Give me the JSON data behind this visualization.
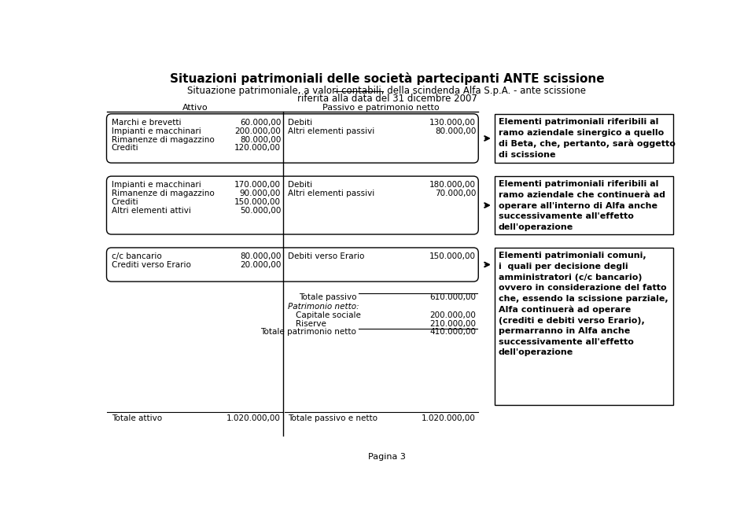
{
  "title": "Situazioni patrimoniali delle società partecipanti ANTE scissione",
  "subtitle_pre": "Situazione patrimoniale, ",
  "subtitle_underlined": "a valori contabili",
  "subtitle_post": ", della scindenda Alfa S.p.A. - ante scissione",
  "subtitle2": "riferita alla data del 31 dicembre 2007",
  "col_attivo": "Attivo",
  "col_passivo": "Passivo e patrimonio netto",
  "block1_left": [
    [
      "Marchi e brevetti",
      "60.000,00"
    ],
    [
      "Impianti e macchinari",
      "200.000,00"
    ],
    [
      "Rimanenze di magazzino",
      "80.000,00"
    ],
    [
      "Crediti",
      "120.000,00"
    ]
  ],
  "block1_right": [
    [
      "Debiti",
      "130.000,00"
    ],
    [
      "Altri elementi passivi",
      "80.000,00"
    ]
  ],
  "note1": "Elementi patrimoniali riferibili al\nramo aziendale sinergico a quello\ndi Beta, che, pertanto, sarà oggetto\ndi scissione",
  "block2_left": [
    [
      "Impianti e macchinari",
      "170.000,00"
    ],
    [
      "Rimanenze di magazzino",
      "90.000,00"
    ],
    [
      "Crediti",
      "150.000,00"
    ],
    [
      "Altri elementi attivi",
      "50.000,00"
    ]
  ],
  "block2_right": [
    [
      "Debiti",
      "180.000,00"
    ],
    [
      "Altri elementi passivi",
      "70.000,00"
    ]
  ],
  "note2": "Elementi patrimoniali riferibili al\nramo aziendale che continuerà ad\noperare all'interno di Alfa anche\nsuccessivamente all'effetto\ndell'operazione",
  "block3_left": [
    [
      "c/c bancario",
      "80.000,00"
    ],
    [
      "Crediti verso Erario",
      "20.000,00"
    ]
  ],
  "block3_right": [
    [
      "Debiti verso Erario",
      "150.000,00"
    ]
  ],
  "note3": "Elementi patrimoniali comuni,\ni  quali per decisione degli\namministratori (c/c bancario)\novvero in considerazione del fatto\nche, essendo la scissione parziale,\nAlfa continuerà ad operare\n(crediti e debiti verso Erario),\npermarranno in Alfa anche\nsuccessivamente all'effetto\ndell'operazione",
  "totale_passivo_label": "Totale passivo",
  "totale_passivo_value": "610.000,00",
  "patrimonio_netto_label": "Patrimonio netto:",
  "capitale_sociale_label": "Capitale sociale",
  "capitale_sociale_value": "200.000,00",
  "riserve_label": "Riserve",
  "riserve_value": "210.000,00",
  "totale_patrimonio_label": "Totale patrimonio netto",
  "totale_patrimonio_value": "410.000,00",
  "totale_attivo_label": "Totale attivo",
  "totale_attivo_value": "1.020.000,00",
  "totale_passivo_netto_label": "Totale passivo e netto",
  "totale_passivo_netto_value": "1.020.000,00",
  "page_label": "Pagina 3",
  "bg_color": "#ffffff"
}
